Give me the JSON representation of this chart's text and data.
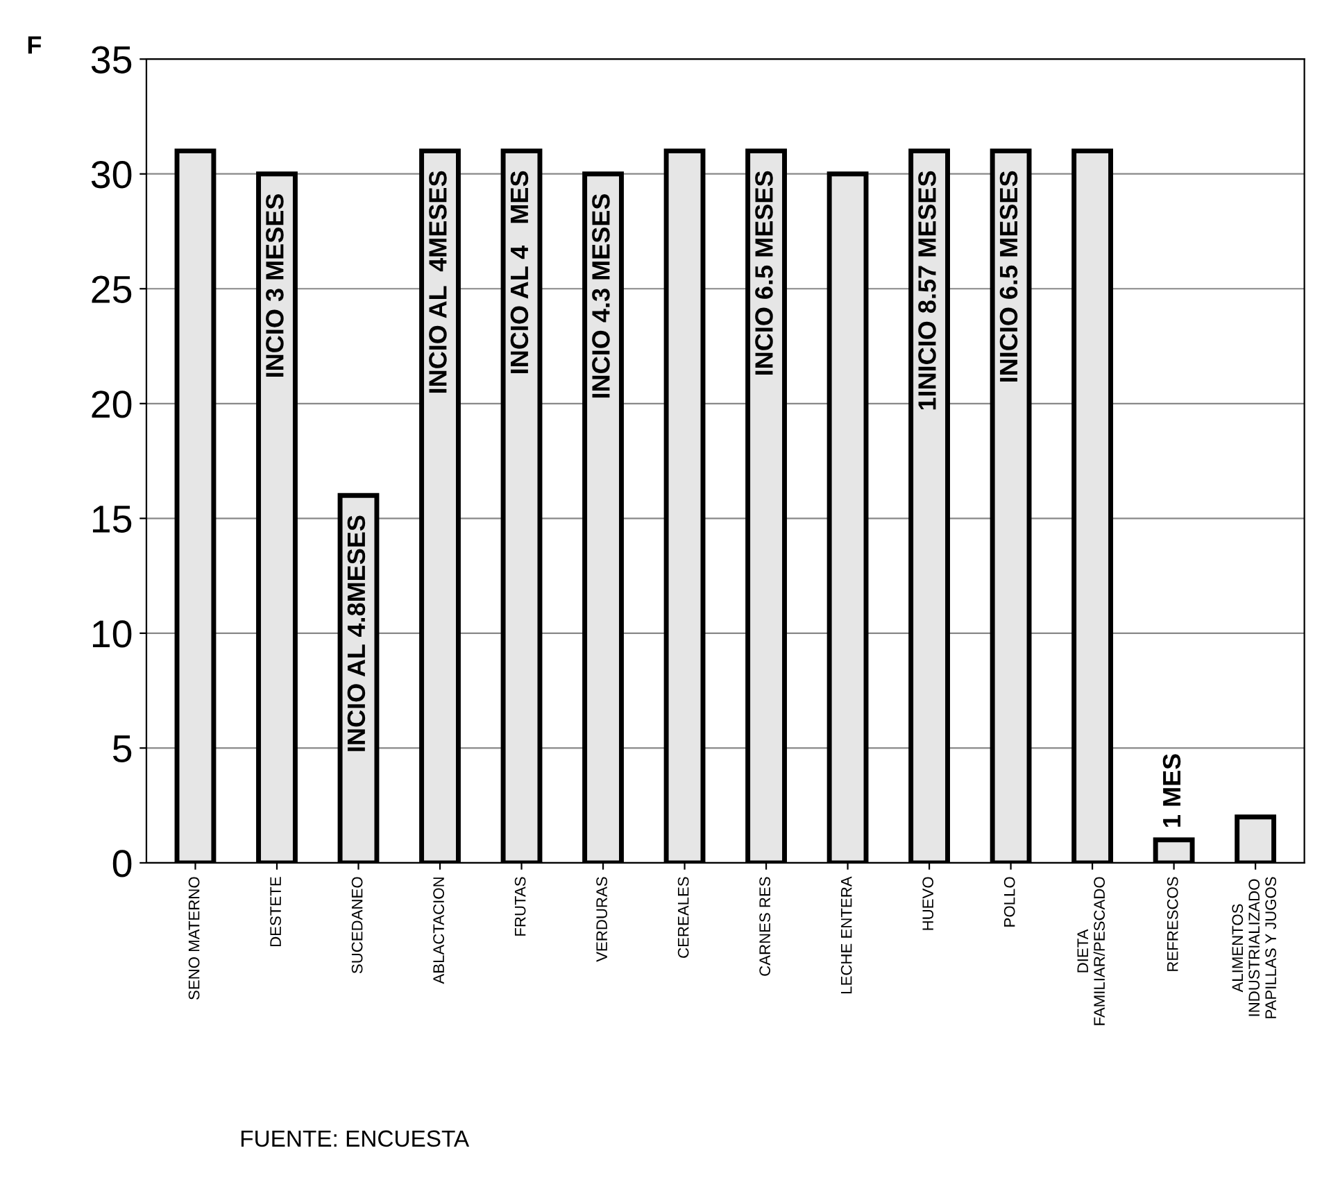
{
  "chart_data": {
    "type": "bar",
    "ylabel": "F",
    "categories": [
      "SENO MATERNO",
      "DESTETE",
      "SUCEDANEO",
      "ABLACTACION",
      "FRUTAS",
      "VERDURAS",
      "CEREALES",
      "CARNES RES",
      "LECHE ENTERA",
      "HUEVO",
      "POLLO",
      "DIETA\nFAMILIAR/PESCADO",
      "REFRESCOS",
      "ALIMENTOS\nINDUSTRIALIZADO\nPAPILLAS Y JUGOS"
    ],
    "values": [
      31,
      30,
      16,
      31,
      31,
      30,
      31,
      31,
      30,
      31,
      31,
      31,
      1,
      2
    ],
    "color": "#e6e6e6",
    "ylim": [
      0,
      35
    ],
    "yticks": [
      0,
      5,
      10,
      15,
      20,
      25,
      30,
      35
    ],
    "grid": "y",
    "annotations": [
      {
        "text": "INCIO 3 MESES",
        "x": "DESTETE",
        "y": 30
      },
      {
        "text": "INCIO AL 4.8MESES",
        "x": "SUCEDANEO",
        "y": 16
      },
      {
        "text": "INCIO AL  4MESES",
        "x": "ABLACTACION",
        "y": 31
      },
      {
        "text": "INCIO AL 4   MES",
        "x": "FRUTAS",
        "y": 31
      },
      {
        "text": "INCIO 4.3 MESES",
        "x": "VERDURAS",
        "y": 30
      },
      {
        "text": "INCIO 6.5 MESES",
        "x": "CARNES RES",
        "y": 31
      },
      {
        "text": "1INICIO 8.57 MESES",
        "x": "HUEVO",
        "y": 31
      },
      {
        "text": "INICIO 6.5 MESES",
        "x": "POLLO",
        "y": 31
      },
      {
        "text": "1 MES",
        "x": "REFRESCOS",
        "y": 1
      },
      "FUENTE: ENCUESTA"
    ]
  }
}
